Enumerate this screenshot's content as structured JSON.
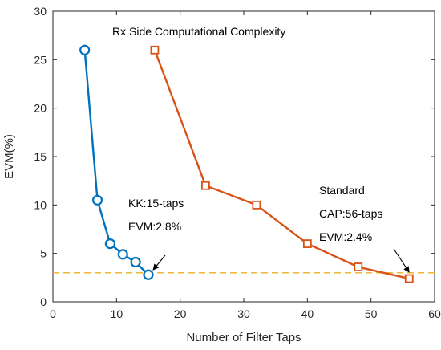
{
  "chart_data": {
    "type": "line",
    "title": "Rx Side Computational Complexity",
    "xlabel": "Number of Filter Taps",
    "ylabel": "EVM(%)",
    "xlim": [
      0,
      60
    ],
    "ylim": [
      0,
      30
    ],
    "xticks": [
      0,
      10,
      20,
      30,
      40,
      50,
      60
    ],
    "yticks": [
      0,
      5,
      10,
      15,
      20,
      25,
      30
    ],
    "grid": false,
    "series": [
      {
        "marker": "circle",
        "color": "#0072BD",
        "x": [
          5,
          7,
          9,
          11,
          13,
          15
        ],
        "y": [
          26,
          10.5,
          6,
          4.9,
          4.1,
          2.8
        ]
      },
      {
        "marker": "square",
        "color": "#D95319",
        "x": [
          16,
          24,
          32,
          40,
          48,
          56
        ],
        "y": [
          26,
          12,
          10,
          6,
          3.6,
          2.4
        ]
      }
    ],
    "reference_line": {
      "y": 3,
      "color": "#EDB120",
      "style": "dashed"
    },
    "annotations": [
      {
        "lines": [
          "KK:15-taps",
          "EVM:2.8%"
        ],
        "arrow_to": [
          15,
          2.8
        ]
      },
      {
        "lines": [
          "Standard",
          "CAP:56-taps",
          "EVM:2.4%"
        ],
        "arrow_to": [
          56,
          2.4
        ]
      }
    ]
  }
}
